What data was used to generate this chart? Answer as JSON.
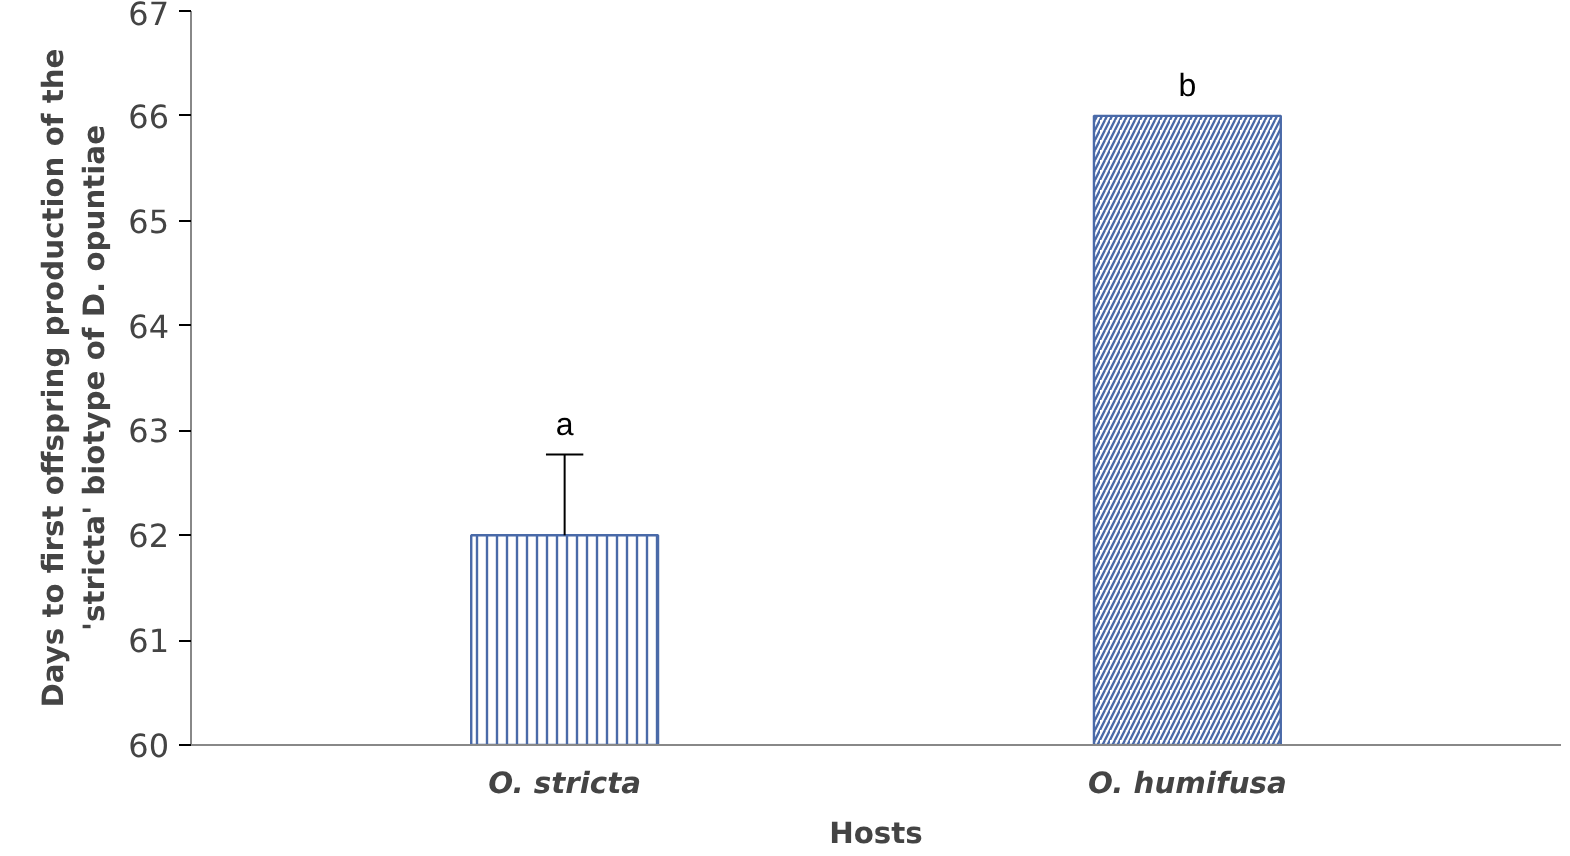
{
  "chart_data": {
    "type": "bar",
    "xlabel": "Hosts",
    "ylabel": "Days to first offspring production of the\n'stricta' biotype of D. opuntiae",
    "categories": [
      "O. stricta",
      "O. humifusa"
    ],
    "values": [
      62,
      66
    ],
    "colors": [
      "#4a6aa8",
      "#4a6aa8"
    ],
    "errors": [
      [
        62,
        62.77
      ],
      null
    ],
    "ylim": [
      60,
      67
    ],
    "yticks": [
      60,
      61,
      62,
      63,
      64,
      65,
      66,
      67
    ],
    "annotations": [
      {
        "text": "a",
        "x": "O. stricta",
        "y": 62.77
      },
      {
        "text": "b",
        "x": "O. humifusa",
        "y": 66
      }
    ],
    "grid": false
  }
}
